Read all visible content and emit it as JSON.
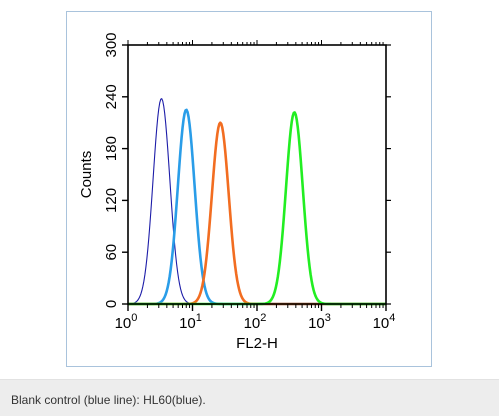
{
  "chart_data": {
    "type": "line",
    "xlabel": "FL2-H",
    "ylabel": "Counts",
    "xscale": "log",
    "xlim": [
      1,
      10000
    ],
    "ylim": [
      0,
      300
    ],
    "x_ticks": [
      {
        "base": "10",
        "exp": "0"
      },
      {
        "base": "10",
        "exp": "1"
      },
      {
        "base": "10",
        "exp": "2"
      },
      {
        "base": "10",
        "exp": "3"
      },
      {
        "base": "10",
        "exp": "4"
      }
    ],
    "y_ticks": [
      "0",
      "60",
      "120",
      "180",
      "240",
      "300"
    ],
    "y_tick_values": [
      0,
      60,
      120,
      180,
      240,
      300
    ],
    "series": [
      {
        "color": "#1c1ca8",
        "style": "thin",
        "peak_x": 3.3,
        "peak_y": 238,
        "width": 0.13,
        "x": [
          1.5,
          2.0,
          2.5,
          3.0,
          3.3,
          3.7,
          4.5,
          5.5,
          7.0
        ],
        "y": [
          0,
          35,
          140,
          225,
          238,
          220,
          130,
          35,
          0
        ]
      },
      {
        "color": "#2a9de8",
        "style": "thick",
        "peak_x": 8,
        "peak_y": 225,
        "width": 0.13,
        "x": [
          3.5,
          4.8,
          6.0,
          7.2,
          8.0,
          9.0,
          11.0,
          14.0,
          18.0
        ],
        "y": [
          0,
          40,
          150,
          215,
          225,
          210,
          130,
          30,
          0
        ]
      },
      {
        "color": "#f26d21",
        "style": "thick",
        "peak_x": 27,
        "peak_y": 210,
        "width": 0.13,
        "x": [
          12,
          16,
          20,
          24,
          27,
          31,
          38,
          48,
          62
        ],
        "y": [
          0,
          40,
          140,
          200,
          210,
          195,
          115,
          30,
          0
        ]
      },
      {
        "color": "#22ee22",
        "style": "thick",
        "peak_x": 380,
        "peak_y": 222,
        "width": 0.13,
        "x": [
          150,
          210,
          270,
          330,
          380,
          440,
          550,
          700,
          950
        ],
        "y": [
          0,
          40,
          150,
          212,
          222,
          205,
          120,
          30,
          0
        ]
      }
    ]
  },
  "caption": "Blank control (blue line): HL60(blue)."
}
